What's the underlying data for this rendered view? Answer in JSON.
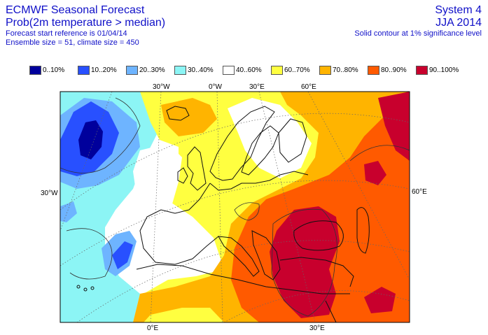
{
  "header": {
    "title": "ECMWF Seasonal Forecast",
    "subtitle": "Prob(2m temperature > median)",
    "start_ref": "Forecast start reference is 01/04/14",
    "ensemble": "Ensemble size = 51, climate size = 450",
    "system": "System 4",
    "season": "JJA 2014",
    "contour_note": "Solid contour at 1% significance level"
  },
  "legend": [
    {
      "label": "0..10%",
      "color": "#00009c"
    },
    {
      "label": "10..20%",
      "color": "#2850ff"
    },
    {
      "label": "20..30%",
      "color": "#6eb4ff"
    },
    {
      "label": "30..40%",
      "color": "#8cf5f5"
    },
    {
      "label": "40..60%",
      "color": "#ffffff"
    },
    {
      "label": "60..70%",
      "color": "#ffff40"
    },
    {
      "label": "70..80%",
      "color": "#ffb400"
    },
    {
      "label": "80..90%",
      "color": "#ff5a00"
    },
    {
      "label": "90..100%",
      "color": "#c8002d"
    }
  ],
  "axis_labels": {
    "top": [
      "30°W",
      "0°W",
      "30°E",
      "60°E"
    ],
    "bottom": [
      "0°E",
      "30°E"
    ],
    "left": "30°W",
    "right": "60°E"
  }
}
